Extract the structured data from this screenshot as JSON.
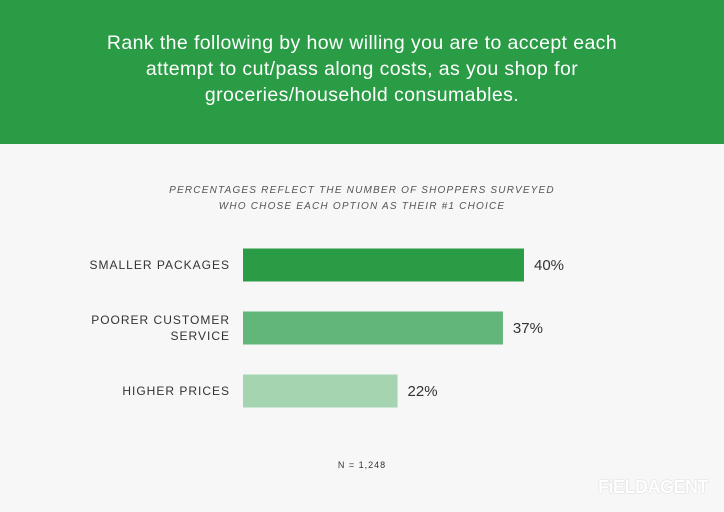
{
  "header": {
    "title": "Rank the following by how willing you are to accept each attempt to cut/pass along costs, as you shop for groceries/household consumables."
  },
  "chart_data": {
    "type": "bar",
    "orientation": "horizontal",
    "subtitle_lines": [
      "PERCENTAGES REFLECT THE NUMBER OF SHOPPERS SURVEYED",
      "WHO CHOSE EACH OPTION AS THEIR #1 CHOICE"
    ],
    "categories": [
      [
        "SMALLER PACKAGES"
      ],
      [
        "POORER CUSTOMER",
        "SERVICE"
      ],
      [
        "HIGHER PRICES"
      ]
    ],
    "values": [
      40,
      37,
      22
    ],
    "value_labels": [
      "40%",
      "37%",
      "22%"
    ],
    "colors": [
      "#2a9c46",
      "#62b67a",
      "#a4d4b0"
    ],
    "xlim": [
      0,
      40
    ],
    "grid": false,
    "footnote": "N = 1,248"
  },
  "brand": {
    "logo_text": "FiELDAGENT"
  }
}
